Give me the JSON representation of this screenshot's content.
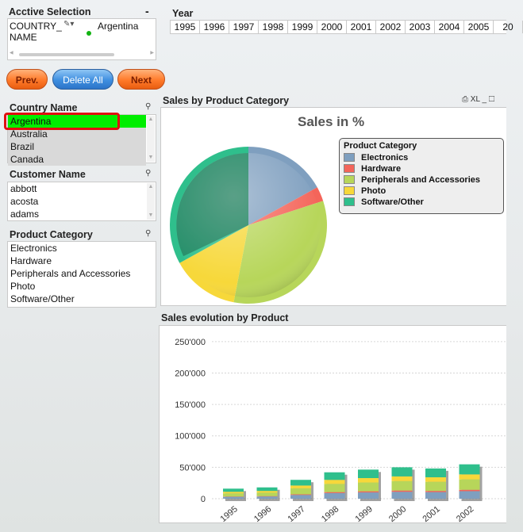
{
  "active_selection": {
    "title": "Acctive Selection",
    "minimize_label": "-",
    "field": "COUNTRY_ NAME",
    "value": "Argentina"
  },
  "buttons": {
    "prev": "Prev.",
    "delete_all": "Delete All",
    "next": "Next"
  },
  "year": {
    "title": "Year",
    "values": [
      "1995",
      "1996",
      "1997",
      "1998",
      "1999",
      "2000",
      "2001",
      "2002",
      "2003",
      "2004",
      "2005",
      "20"
    ]
  },
  "country": {
    "title": "Country Name",
    "items": [
      "Argentina",
      "Australia",
      "Brazil",
      "Canada"
    ]
  },
  "customer": {
    "title": "Customer Name",
    "items": [
      "abbott",
      "acosta",
      "adams"
    ]
  },
  "product_category": {
    "title": "Product Category",
    "items": [
      "Electronics",
      "Hardware",
      "Peripherals and Accessories",
      "Photo",
      "Software/Other"
    ]
  },
  "pie_panel": {
    "caption": "Sales by Product Category",
    "xl_label": "XL",
    "chart_title": "Sales in %",
    "legend_title": "Product Category"
  },
  "bar_panel": {
    "caption": "Sales evolution by Product"
  },
  "colors": {
    "Electronics": "#7f9fbf",
    "Hardware": "#f4655a",
    "Peripherals and Accessories": "#b7d65a",
    "Photo": "#f7d83a",
    "Software/Other": "#2fbf8c",
    "selected_green": "#00ee00"
  },
  "chart_data": [
    {
      "type": "pie",
      "title": "Sales in %",
      "legend_title": "Product Category",
      "legend_position": "right",
      "slices": [
        {
          "name": "Electronics",
          "value": 17
        },
        {
          "name": "Hardware",
          "value": 3
        },
        {
          "name": "Peripherals and Accessories",
          "value": 33
        },
        {
          "name": "Photo",
          "value": 14
        },
        {
          "name": "Software/Other",
          "value": 33
        }
      ]
    },
    {
      "type": "bar",
      "stacked": true,
      "categories": [
        "1995",
        "1996",
        "1997",
        "1998",
        "1999",
        "2000",
        "2001",
        "2002"
      ],
      "ylim": [
        0,
        270000
      ],
      "yticks": [
        "0",
        "50'000",
        "100'000",
        "150'000",
        "200'000",
        "250'000"
      ],
      "ytick_values": [
        0,
        50000,
        100000,
        150000,
        200000,
        250000
      ],
      "grid": true,
      "series": [
        {
          "name": "Electronics",
          "values": [
            3000,
            3500,
            6000,
            9000,
            10000,
            11000,
            10500,
            12000
          ]
        },
        {
          "name": "Hardware",
          "values": [
            500,
            600,
            1000,
            1500,
            1800,
            2000,
            1900,
            2200
          ]
        },
        {
          "name": "Peripherals and Accessories",
          "values": [
            5000,
            5500,
            9500,
            13000,
            14000,
            15000,
            14500,
            16500
          ]
        },
        {
          "name": "Photo",
          "values": [
            2500,
            2800,
            4500,
            6500,
            7000,
            7500,
            7200,
            8000
          ]
        },
        {
          "name": "Software/Other",
          "values": [
            5000,
            5600,
            9000,
            12000,
            13500,
            14500,
            14000,
            16000
          ]
        }
      ]
    }
  ]
}
